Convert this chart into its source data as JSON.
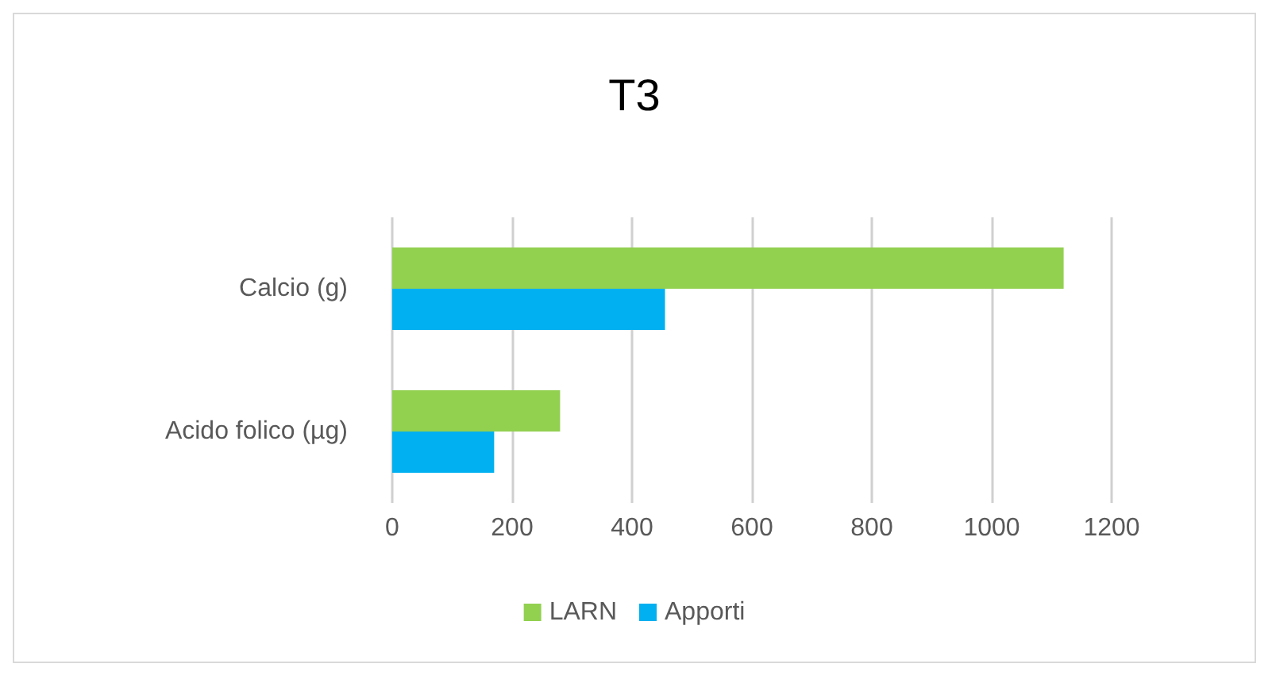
{
  "chart_data": {
    "type": "bar",
    "orientation": "horizontal",
    "title": "T3",
    "categories": [
      "Calcio (g)",
      "Acido folico (µg)"
    ],
    "series": [
      {
        "name": "LARN",
        "color": "#92d050",
        "values": [
          1120,
          280
        ]
      },
      {
        "name": "Apporti",
        "color": "#00b0f0",
        "values": [
          455,
          170
        ]
      }
    ],
    "xlim": [
      0,
      1200
    ],
    "xticks": [
      0,
      200,
      400,
      600,
      800,
      1000,
      1200
    ],
    "grid": "x",
    "legend": "bottom"
  }
}
